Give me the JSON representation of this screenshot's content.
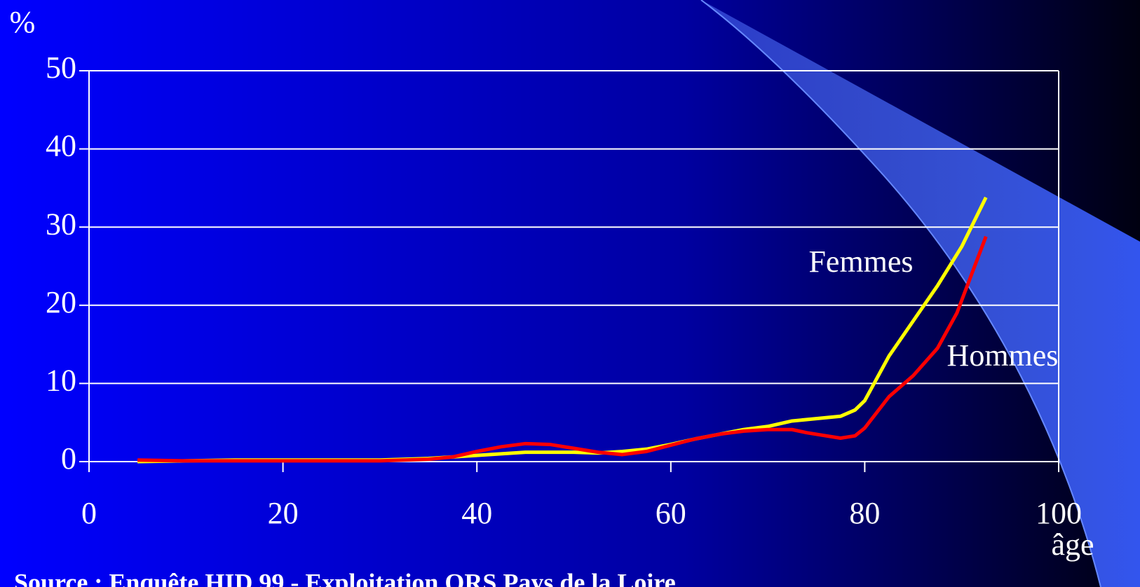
{
  "chart_data": {
    "type": "line",
    "y_label": "%",
    "x_label": "âge",
    "xlim": [
      0,
      100
    ],
    "xticks": [
      0,
      20,
      40,
      60,
      80,
      100
    ],
    "ylim": [
      0,
      50
    ],
    "yticks": [
      0,
      10,
      20,
      30,
      40,
      50
    ],
    "grid": true,
    "series": [
      {
        "name": "Femmes",
        "color": "#ffff00",
        "x": [
          5,
          10,
          15,
          20,
          25,
          30,
          35,
          40,
          45,
          50,
          52.5,
          55,
          57.5,
          60,
          62.5,
          65,
          67.5,
          70,
          72.5,
          75,
          77.5,
          79,
          80,
          82.5,
          85,
          87.5,
          90,
          92.5
        ],
        "values": [
          0,
          0.1,
          0.2,
          0.2,
          0.2,
          0.2,
          0.4,
          0.8,
          1.2,
          1.2,
          1.1,
          1.3,
          1.6,
          2.2,
          2.9,
          3.5,
          4.1,
          4.5,
          5.2,
          5.5,
          5.8,
          6.6,
          7.8,
          13.5,
          18,
          22.5,
          27.5,
          33.8
        ]
      },
      {
        "name": "Hommes",
        "color": "#ff0000",
        "x": [
          5,
          10,
          15,
          20,
          25,
          30,
          35,
          37.5,
          40,
          42.5,
          45,
          47.5,
          50,
          52.5,
          55,
          57.5,
          60,
          62.5,
          65,
          67.5,
          70,
          72.5,
          74,
          77.5,
          79,
          80,
          82.5,
          85,
          87.5,
          89.5,
          92.5
        ],
        "values": [
          0.2,
          0.1,
          0.1,
          0.1,
          0.1,
          0.1,
          0.3,
          0.6,
          1.3,
          1.9,
          2.3,
          2.2,
          1.7,
          1.2,
          0.9,
          1.3,
          2.1,
          2.9,
          3.5,
          3.9,
          4.1,
          4.1,
          3.7,
          3.0,
          3.3,
          4.3,
          8.3,
          11,
          14.5,
          19,
          28.8
        ]
      }
    ],
    "source": "Source : Enquête HID 99 - Exploitation ORS Pays de la Loire"
  }
}
